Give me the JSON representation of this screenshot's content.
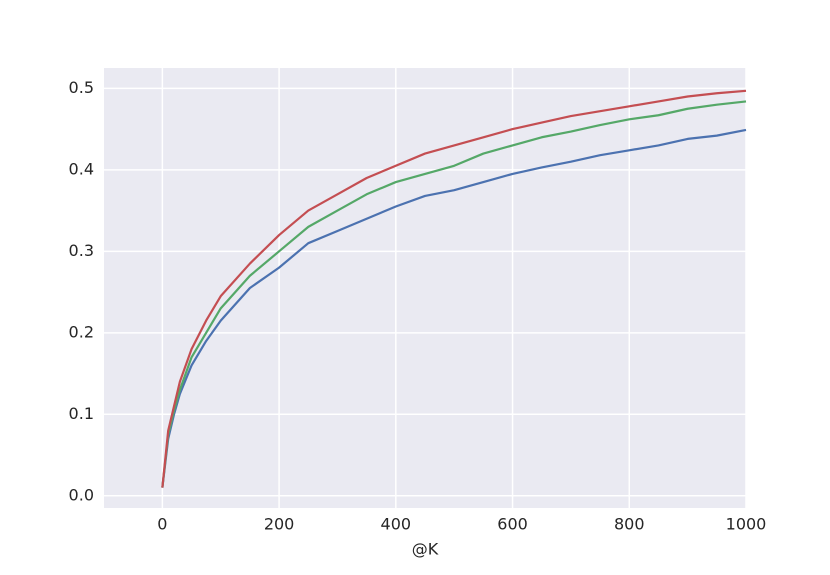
{
  "chart_data": {
    "type": "line",
    "x_label": "@K",
    "x": [
      0,
      10,
      20,
      30,
      50,
      75,
      100,
      150,
      200,
      250,
      300,
      350,
      400,
      450,
      500,
      550,
      600,
      650,
      700,
      750,
      800,
      850,
      900,
      950,
      1000
    ],
    "series": [
      {
        "color": "#4c72b0",
        "values": [
          0.01,
          0.07,
          0.1,
          0.125,
          0.16,
          0.19,
          0.215,
          0.255,
          0.28,
          0.31,
          0.325,
          0.34,
          0.355,
          0.368,
          0.375,
          0.385,
          0.395,
          0.403,
          0.41,
          0.418,
          0.424,
          0.43,
          0.438,
          0.442,
          0.449
        ]
      },
      {
        "color": "#55a868",
        "values": [
          0.01,
          0.075,
          0.105,
          0.13,
          0.17,
          0.2,
          0.23,
          0.27,
          0.3,
          0.33,
          0.35,
          0.37,
          0.385,
          0.395,
          0.405,
          0.42,
          0.43,
          0.44,
          0.447,
          0.455,
          0.462,
          0.467,
          0.475,
          0.48,
          0.484
        ]
      },
      {
        "color": "#c44e52",
        "values": [
          0.01,
          0.08,
          0.11,
          0.14,
          0.18,
          0.215,
          0.245,
          0.285,
          0.32,
          0.35,
          0.37,
          0.39,
          0.405,
          0.42,
          0.43,
          0.44,
          0.45,
          0.458,
          0.466,
          0.472,
          0.478,
          0.484,
          0.49,
          0.494,
          0.497
        ]
      }
    ],
    "xlim": [
      -100,
      1000
    ],
    "xticks": [
      0,
      200,
      400,
      600,
      800,
      1000
    ],
    "ylim": [
      -0.015,
      0.525
    ],
    "yticks": [
      {
        "value": 0,
        "label": "0.0"
      },
      0.1,
      0.2,
      0.3,
      0.4,
      0.5
    ],
    "grid": true,
    "background": "#eaeaf2"
  }
}
